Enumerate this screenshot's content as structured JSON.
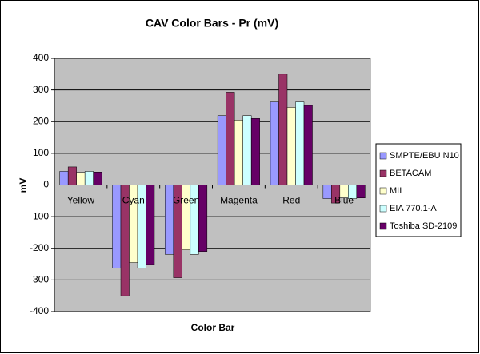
{
  "chart_data": {
    "type": "bar",
    "title": "CAV Color Bars - Pr (mV)",
    "x_label": "Color Bar",
    "y_label": "mV",
    "categories": [
      "Yellow",
      "Cyan",
      "Green",
      "Magenta",
      "Red",
      "Blue"
    ],
    "series": [
      {
        "name": "SMPTE/EBU N10",
        "color": "#9999ff",
        "values": [
          43,
          -262,
          -219,
          219,
          262,
          -43
        ]
      },
      {
        "name": "BETACAM",
        "color": "#993366",
        "values": [
          57,
          -350,
          -293,
          293,
          350,
          -57
        ]
      },
      {
        "name": "MII",
        "color": "#ffffcc",
        "values": [
          40,
          -245,
          -205,
          205,
          245,
          -40
        ]
      },
      {
        "name": "EIA 770.1-A",
        "color": "#ccffff",
        "values": [
          43,
          -262,
          -219,
          219,
          262,
          -43
        ]
      },
      {
        "name": "Toshiba SD-2109",
        "color": "#660066",
        "values": [
          41,
          -251,
          -210,
          210,
          251,
          -41
        ]
      }
    ],
    "ylim": [
      -400,
      400
    ],
    "yticks": [
      -400,
      -300,
      -200,
      -100,
      0,
      100,
      200,
      300,
      400
    ],
    "grid": true,
    "legend": "right",
    "plot_background": "#c0c0c0"
  }
}
